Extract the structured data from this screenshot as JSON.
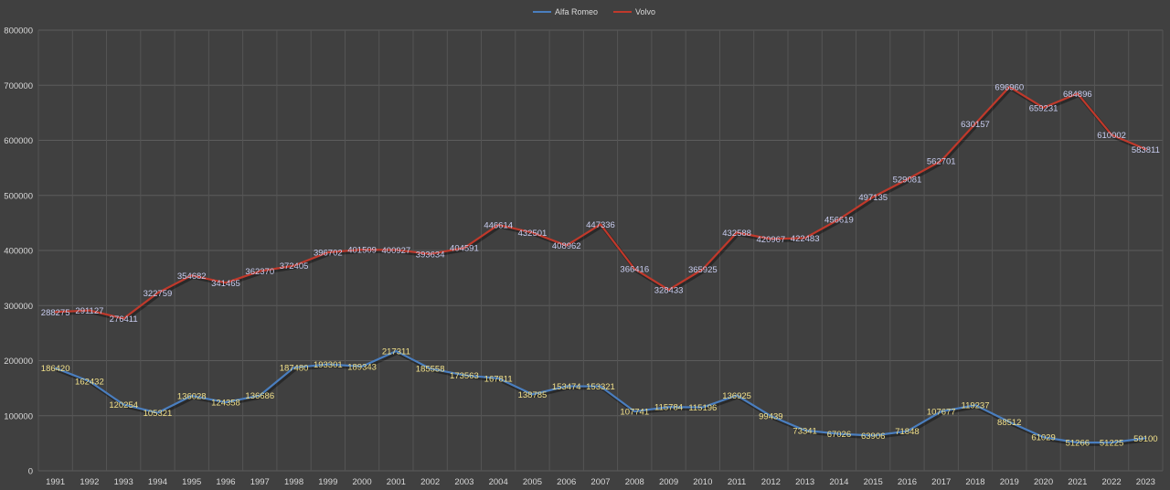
{
  "chart_data": {
    "type": "line",
    "title": "",
    "xlabel": "",
    "ylabel": "",
    "ylim": [
      0,
      800000
    ],
    "yticks": [
      0,
      100000,
      200000,
      300000,
      400000,
      500000,
      600000,
      700000,
      800000
    ],
    "grid": true,
    "legend_position": "top-center",
    "categories": [
      "1991",
      "1992",
      "1993",
      "1994",
      "1995",
      "1996",
      "1997",
      "1998",
      "1999",
      "2000",
      "2001",
      "2002",
      "2003",
      "2004",
      "2005",
      "2006",
      "2007",
      "2008",
      "2009",
      "2010",
      "2011",
      "2012",
      "2013",
      "2014",
      "2015",
      "2016",
      "2017",
      "2018",
      "2019",
      "2020",
      "2021",
      "2022",
      "2023"
    ],
    "series": [
      {
        "name": "Alfa Romeo",
        "color": "#4a7ebf",
        "label_color": "#f1e08a",
        "values": [
          186420,
          162432,
          120254,
          105321,
          136028,
          124358,
          136686,
          187480,
          193301,
          189343,
          217311,
          185558,
          173563,
          167811,
          138785,
          153474,
          153321,
          107741,
          115784,
          115196,
          136925,
          99439,
          73341,
          67026,
          63906,
          71848,
          107677,
          119237,
          88512,
          61029,
          51266,
          51225,
          59100
        ]
      },
      {
        "name": "Volvo",
        "color": "#c0392b",
        "label_color": "#c9cdf0",
        "values": [
          288275,
          291127,
          276411,
          322759,
          354682,
          341465,
          362370,
          372405,
          396702,
          401509,
          400927,
          393634,
          404591,
          446614,
          432501,
          408962,
          447336,
          366416,
          328433,
          365925,
          432588,
          420967,
          422483,
          456619,
          497135,
          529081,
          562701,
          630157,
          696960,
          659231,
          684896,
          610002,
          583811
        ]
      }
    ]
  }
}
